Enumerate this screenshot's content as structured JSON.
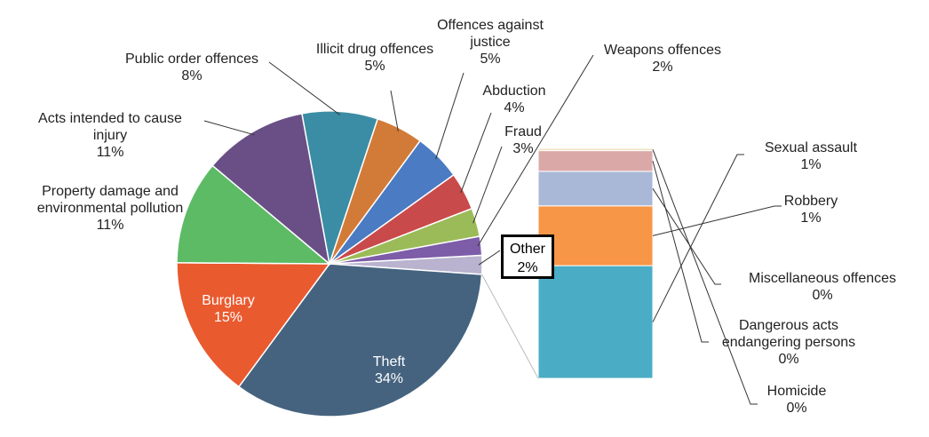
{
  "chart_data": {
    "type": "pie-of-bar",
    "pie": [
      {
        "name": "Other",
        "label": "2%",
        "value": 2,
        "color": "#b9b3cf"
      },
      {
        "name": "Theft",
        "label": "34%",
        "value": 34,
        "color": "#45637f"
      },
      {
        "name": "Burglary",
        "label": "15%",
        "value": 15,
        "color": "#e95a2f"
      },
      {
        "name": "Property damage and environmental pollution",
        "label": "11%",
        "value": 11,
        "color": "#5cbb64"
      },
      {
        "name": "Acts intended to cause injury",
        "label": "11%",
        "value": 11,
        "color": "#6a4f86"
      },
      {
        "name": "Public order offences",
        "label": "8%",
        "value": 8,
        "color": "#3a8da4"
      },
      {
        "name": "Illicit drug offences",
        "label": "5%",
        "value": 5,
        "color": "#d27b38"
      },
      {
        "name": "Offences against justice",
        "label": "5%",
        "value": 5,
        "color": "#4a7bc3"
      },
      {
        "name": "Abduction",
        "label": "4%",
        "value": 4,
        "color": "#c94a4a"
      },
      {
        "name": "Fraud",
        "label": "3%",
        "value": 3,
        "color": "#9bbb59"
      },
      {
        "name": "Weapons offences",
        "label": "2%",
        "value": 2,
        "color": "#7d5ca8"
      }
    ],
    "bar": [
      {
        "name": "Sexual assault",
        "label": "1%",
        "value": 0.98,
        "color": "#4bacc6"
      },
      {
        "name": "Robbery",
        "label": "1%",
        "value": 0.52,
        "color": "#f79646"
      },
      {
        "name": "Miscellaneous offences",
        "label": "0%",
        "value": 0.3,
        "color": "#a9b8d6"
      },
      {
        "name": "Dangerous acts endangering persons",
        "label": "0%",
        "value": 0.18,
        "color": "#dba8a8"
      },
      {
        "name": "Homicide",
        "label": "0%",
        "value": 0.02,
        "color": "#efe5bf"
      }
    ]
  }
}
